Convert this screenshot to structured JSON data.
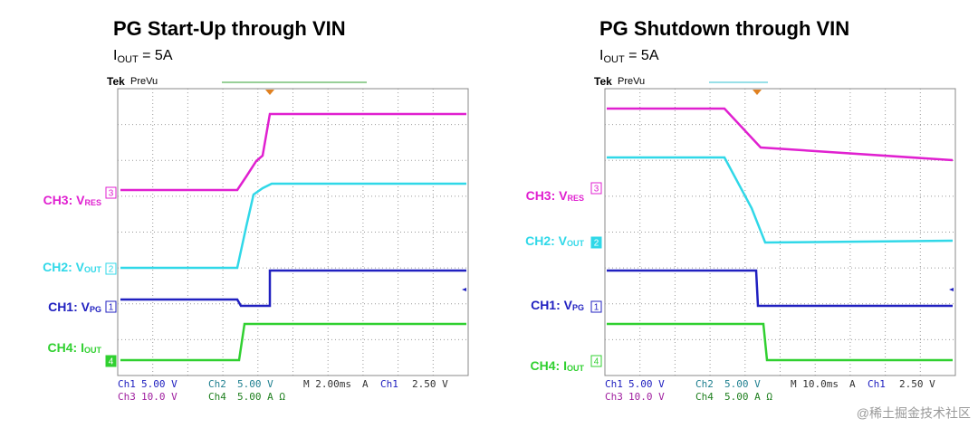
{
  "panels": [
    {
      "title": "PG Start-Up through VIN",
      "subtitle": {
        "main": "I",
        "sub": "OUT",
        "rest": " = 5A"
      },
      "scope": {
        "brand": "Tek",
        "mode": "PreVu"
      },
      "channels": [
        {
          "label": "CH3: V",
          "sub": "RES",
          "marker": "3"
        },
        {
          "label": "CH2: V",
          "sub": "OUT",
          "marker": "2"
        },
        {
          "label": "CH1: V",
          "sub": "PG",
          "marker": "1"
        },
        {
          "label": "CH4: I",
          "sub": "OUT",
          "marker": "4"
        }
      ],
      "readout": [
        [
          "Ch1",
          "5.00 V",
          "Ch2",
          "5.00 V",
          "M 2.00ms",
          "A",
          "Ch1",
          "2.50 V"
        ],
        [
          "Ch3",
          "10.0 V",
          "Ch4",
          "5.00 A Ω"
        ]
      ]
    },
    {
      "title": "PG Shutdown through VIN",
      "subtitle": {
        "main": "I",
        "sub": "OUT",
        "rest": " = 5A"
      },
      "scope": {
        "brand": "Tek",
        "mode": "PreVu"
      },
      "channels": [
        {
          "label": "CH3: V",
          "sub": "RES",
          "marker": "3"
        },
        {
          "label": "CH2: V",
          "sub": "OUT",
          "marker": "2"
        },
        {
          "label": "CH1: V",
          "sub": "PG",
          "marker": "1"
        },
        {
          "label": "CH4: I",
          "sub": "OUT",
          "marker": "4"
        }
      ],
      "readout": [
        [
          "Ch1",
          "5.00 V",
          "Ch2",
          "5.00 V",
          "M 10.0ms",
          "A",
          "Ch1",
          "2.50 V"
        ],
        [
          "Ch3",
          "10.0 V",
          "Ch4",
          "5.00 A Ω"
        ]
      ]
    }
  ],
  "watermark": "@稀土掘金技术社区"
}
